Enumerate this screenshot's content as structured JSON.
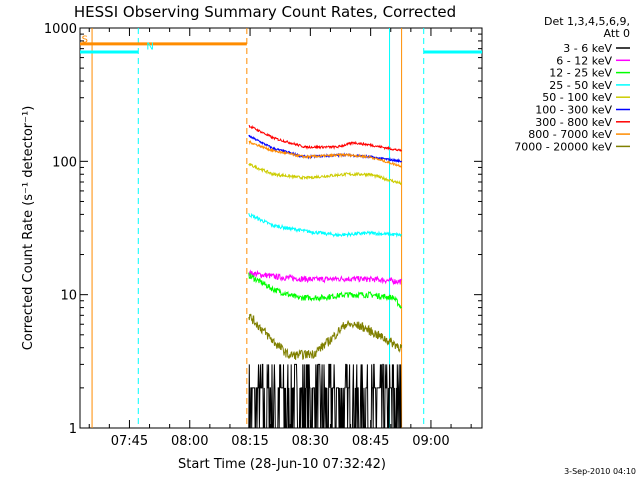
{
  "chart_data": {
    "type": "line",
    "title": "HESSI Observing Summary Count Rates, Corrected",
    "xlabel": "Start Time (28-Jun-10 07:32:42)",
    "ylabel": "Corrected Count Rate (s⁻¹ detector⁻¹)",
    "y_scale": "log",
    "ylim": [
      1,
      1000
    ],
    "x_minutes_range": [
      0,
      100
    ],
    "x_ticks": [
      {
        "label": "07:45",
        "minute": 12.3
      },
      {
        "label": "08:00",
        "minute": 27.3
      },
      {
        "label": "08:15",
        "minute": 42.3
      },
      {
        "label": "08:30",
        "minute": 57.3
      },
      {
        "label": "08:45",
        "minute": 72.3
      },
      {
        "label": "09:00",
        "minute": 87.3
      }
    ],
    "y_ticks": [
      {
        "label": "1",
        "value": 1
      },
      {
        "label": "10",
        "value": 10
      },
      {
        "label": "100",
        "value": 100
      },
      {
        "label": "1000",
        "value": 1000
      }
    ],
    "legend_header": [
      "Det 1,3,4,5,6,9,",
      "Att 0"
    ],
    "legend_placement": "right",
    "series": [
      {
        "name": "3 - 6 keV",
        "color": "#000000",
        "noise": 0.35,
        "points": [
          [
            42,
            3
          ],
          [
            50,
            3
          ],
          [
            58,
            3
          ],
          [
            66,
            3
          ],
          [
            74,
            3
          ],
          [
            80,
            3
          ]
        ]
      },
      {
        "name": "6 - 12 keV",
        "color": "#ff00ff",
        "noise": 0.05,
        "points": [
          [
            42,
            14.5
          ],
          [
            50,
            13.5
          ],
          [
            58,
            13
          ],
          [
            66,
            13.2
          ],
          [
            74,
            13
          ],
          [
            80,
            12.5
          ]
        ]
      },
      {
        "name": "12 - 25 keV",
        "color": "#00ff00",
        "noise": 0.05,
        "points": [
          [
            42,
            14
          ],
          [
            48,
            11
          ],
          [
            54,
            9.5
          ],
          [
            60,
            9.5
          ],
          [
            66,
            10
          ],
          [
            72,
            10
          ],
          [
            78,
            9.5
          ],
          [
            80,
            8
          ]
        ]
      },
      {
        "name": "25 - 50 keV",
        "color": "#00ffff",
        "noise": 0.03,
        "points": [
          [
            42,
            40
          ],
          [
            48,
            33
          ],
          [
            56,
            30
          ],
          [
            64,
            28
          ],
          [
            72,
            29
          ],
          [
            80,
            28
          ]
        ]
      },
      {
        "name": "50 - 100 keV",
        "color": "#cccc00",
        "noise": 0.025,
        "points": [
          [
            42,
            95
          ],
          [
            48,
            80
          ],
          [
            56,
            75
          ],
          [
            66,
            80
          ],
          [
            72,
            80
          ],
          [
            80,
            68
          ]
        ]
      },
      {
        "name": "100 - 300 keV",
        "color": "#0000ff",
        "noise": 0.02,
        "points": [
          [
            42,
            155
          ],
          [
            48,
            125
          ],
          [
            56,
            108
          ],
          [
            66,
            112
          ],
          [
            72,
            108
          ],
          [
            80,
            100
          ]
        ]
      },
      {
        "name": "300 - 800 keV",
        "color": "#ff0000",
        "noise": 0.02,
        "points": [
          [
            42,
            185
          ],
          [
            48,
            150
          ],
          [
            56,
            128
          ],
          [
            64,
            128
          ],
          [
            68,
            138
          ],
          [
            72,
            133
          ],
          [
            80,
            120
          ]
        ]
      },
      {
        "name": "800 - 7000 keV",
        "color": "#ff8c00",
        "noise": 0.02,
        "points": [
          [
            42,
            140
          ],
          [
            48,
            120
          ],
          [
            56,
            108
          ],
          [
            66,
            112
          ],
          [
            72,
            108
          ],
          [
            80,
            92
          ]
        ]
      },
      {
        "name": "7000 - 20000 keV",
        "color": "#808000",
        "noise": 0.08,
        "points": [
          [
            42,
            7
          ],
          [
            48,
            4.5
          ],
          [
            52,
            3.5
          ],
          [
            58,
            3.6
          ],
          [
            62,
            4.5
          ],
          [
            66,
            6
          ],
          [
            70,
            5.8
          ],
          [
            74,
            5
          ],
          [
            80,
            4
          ]
        ]
      }
    ],
    "annotations": [
      {
        "text": "S",
        "color": "#ff8c00",
        "minute": 0.4,
        "value": 780
      },
      {
        "text": "N",
        "color": "#00ffff",
        "minute": 16.5,
        "value": 690
      }
    ],
    "orange_segment": {
      "color": "#ff8c00",
      "x_start": 0,
      "x_end": 41.5,
      "value": 760
    },
    "cyan_segments": [
      {
        "color": "#00ffff",
        "x_start": 0,
        "x_end": 14.5,
        "value": 660
      },
      {
        "color": "#00ffff",
        "x_start": 85.5,
        "x_end": 100,
        "value": 660
      }
    ],
    "vertical_lines": [
      {
        "color": "#ff8c00",
        "minute": 3,
        "style": "solid"
      },
      {
        "color": "#00ffff",
        "minute": 14.5,
        "style": "dashed"
      },
      {
        "color": "#ff8c00",
        "minute": 41.5,
        "style": "dashed"
      },
      {
        "color": "#00ffff",
        "minute": 77,
        "style": "solid"
      },
      {
        "color": "#ff8c00",
        "minute": 80,
        "style": "solid"
      },
      {
        "color": "#00ffff",
        "minute": 85.5,
        "style": "dashed"
      }
    ]
  },
  "footer": {
    "timestamp": "3-Sep-2010 04:10"
  }
}
